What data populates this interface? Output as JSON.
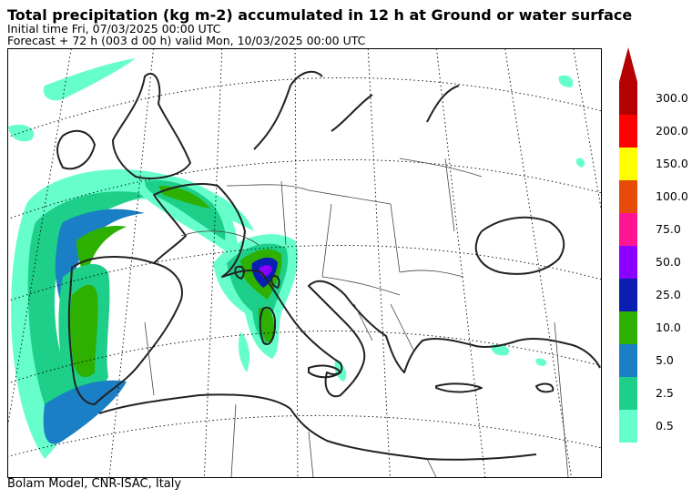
{
  "header": {
    "title": "Total precipitation (kg m-2) accumulated in  12 h at Ground or water surface",
    "initial_time": "Initial time  Fri, 07/03/2025  00:00 UTC",
    "forecast": "Forecast  +  72 h  (003 d 00 h)  valid Mon, 10/03/2025 00:00 UTC"
  },
  "footer": {
    "credit": "Bolam Model, CNR-ISAC, Italy"
  },
  "legend": {
    "labels": [
      "0.5",
      "2.5",
      "5.0",
      "10.0",
      "25.0",
      "50.0",
      "75.0",
      "100.0",
      "150.0",
      "200.0",
      "300.0"
    ],
    "colors": [
      "#66ffcc",
      "#1ecf8a",
      "#1a7fc4",
      "#2db000",
      "#0a1eb4",
      "#8c00ff",
      "#ff1493",
      "#e64b0a",
      "#ffff00",
      "#ff0000",
      "#b40000"
    ],
    "arrow_color": "#b40000"
  },
  "map": {
    "region": "Europe and Mediterranean",
    "graticule": "dotted",
    "coastline_color": "#222222"
  }
}
